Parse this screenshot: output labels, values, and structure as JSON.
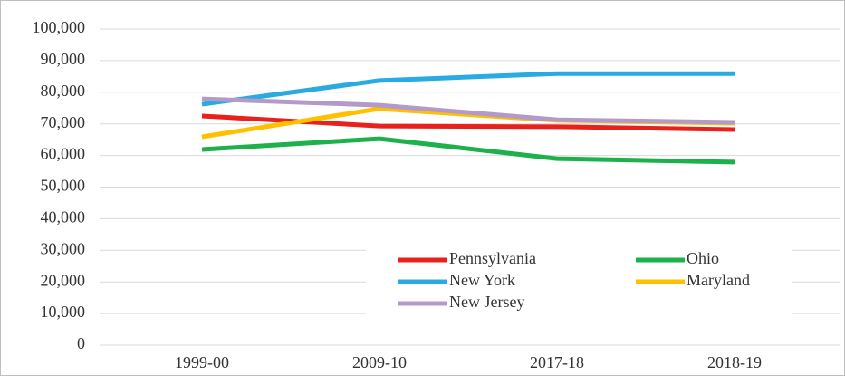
{
  "chart_data": {
    "type": "line",
    "categories": [
      "1999-00",
      "2009-10",
      "2017-18",
      "2018-19"
    ],
    "series": [
      {
        "name": "Pennsylvania",
        "color": "#e8211c",
        "values": [
          72500,
          69300,
          69100,
          68200
        ]
      },
      {
        "name": "Ohio",
        "color": "#1db14b",
        "values": [
          61900,
          65300,
          59000,
          57900
        ]
      },
      {
        "name": "New York",
        "color": "#29abe2",
        "values": [
          76200,
          83700,
          85900,
          85900
        ]
      },
      {
        "name": "Maryland",
        "color": "#ffc000",
        "values": [
          65900,
          74800,
          71100,
          70200
        ]
      },
      {
        "name": "New Jersey",
        "color": "#b39ac9",
        "values": [
          77900,
          75900,
          71300,
          70500
        ]
      }
    ],
    "ylim": [
      0,
      100000
    ],
    "yticks": [
      0,
      {
        "value": 10000,
        "label": "10,000"
      },
      {
        "value": 20000,
        "label": "20,000"
      },
      {
        "value": 30000,
        "label": "30,000"
      },
      {
        "value": 40000,
        "label": "40,000"
      },
      {
        "value": 50000,
        "label": "50,000"
      },
      {
        "value": 60000,
        "label": "60,000"
      },
      {
        "value": 70000,
        "label": "70,000"
      },
      {
        "value": 80000,
        "label": "80,000"
      },
      {
        "value": 90000,
        "label": "90,000"
      },
      {
        "value": 100000,
        "label": "100,000"
      }
    ],
    "grid": true,
    "legend": "bottom-center"
  }
}
